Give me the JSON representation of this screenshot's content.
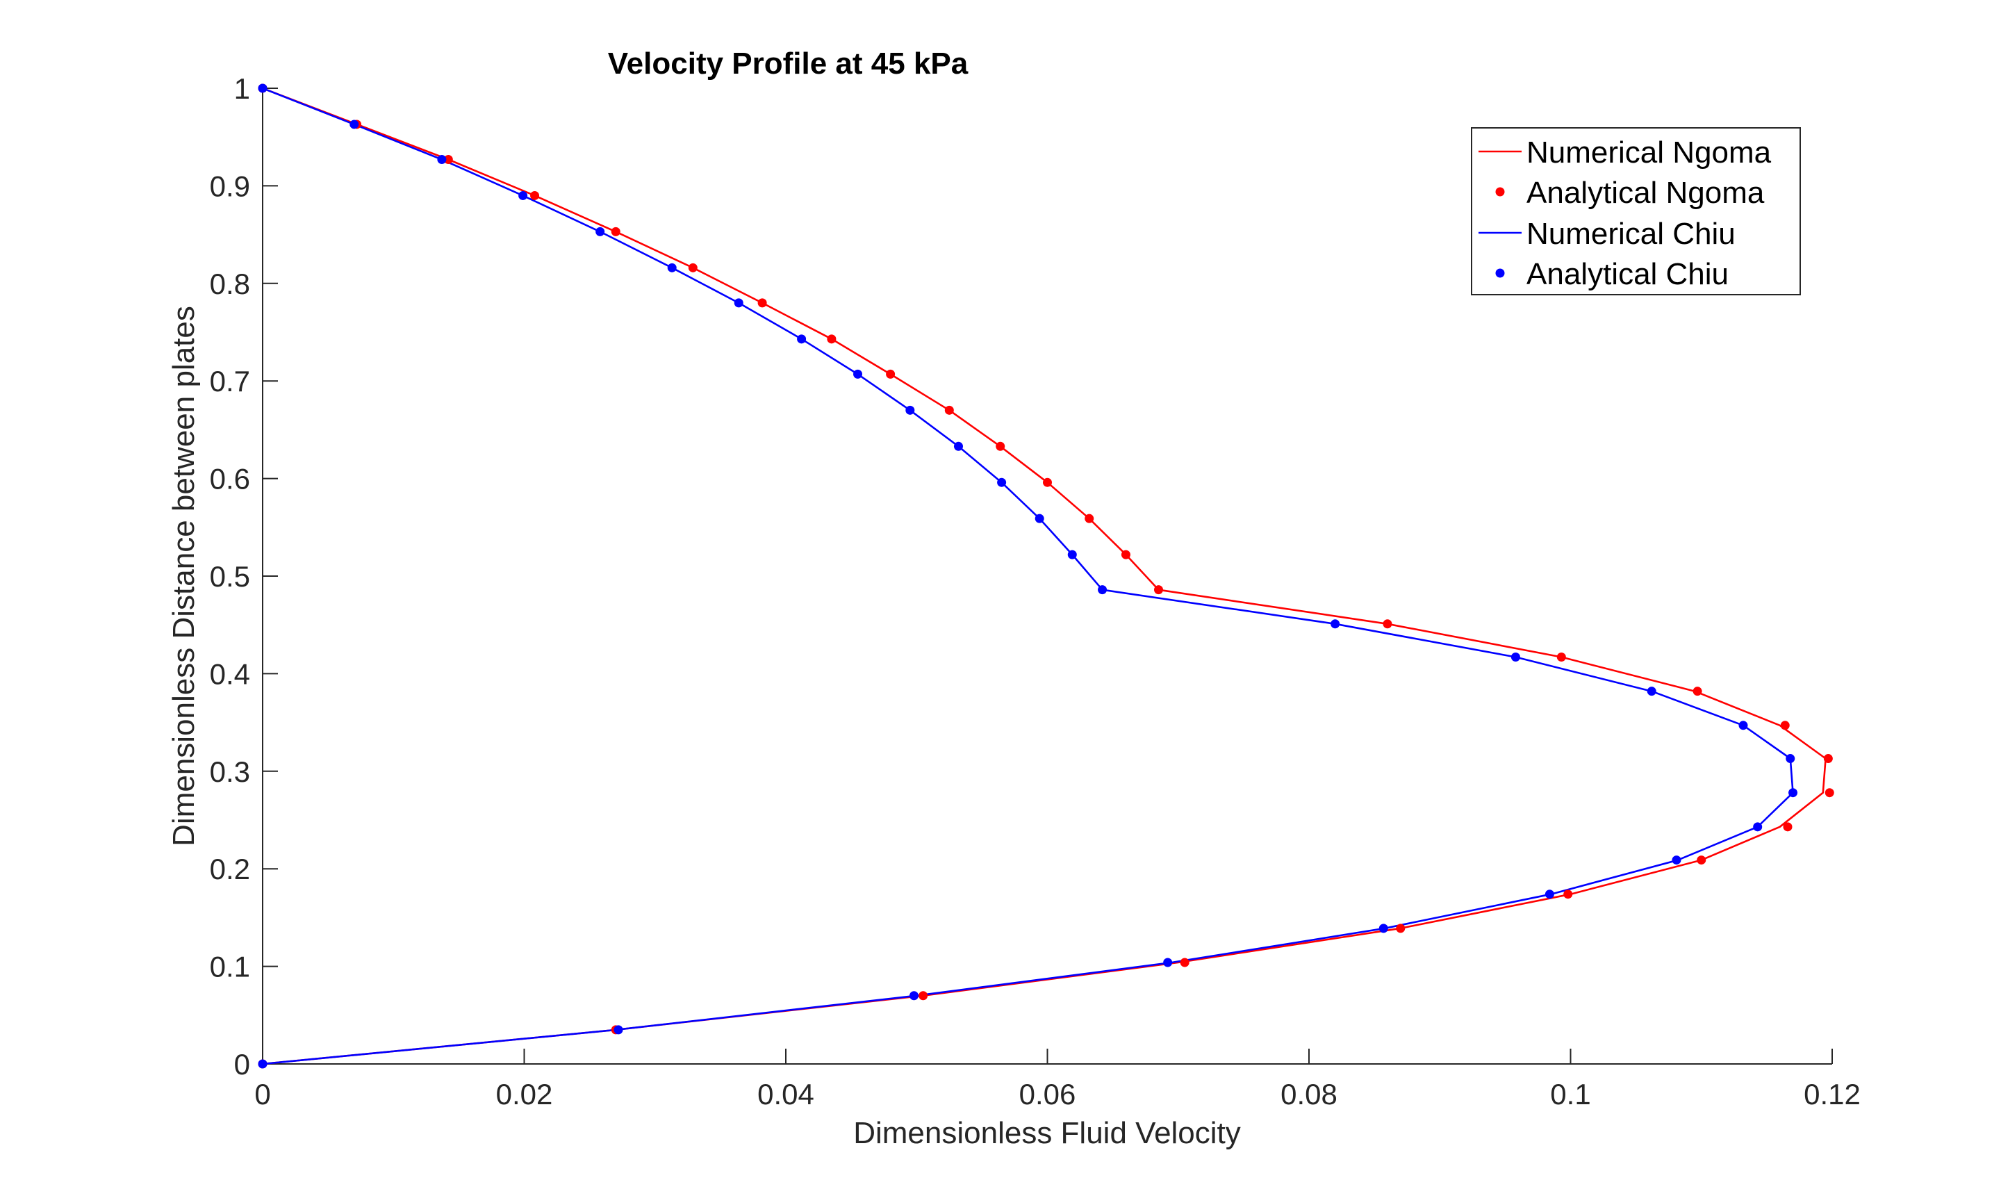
{
  "chart_data": {
    "type": "line",
    "title": "Velocity Profile at 45 kPa",
    "xlabel": "Dimensionless Fluid Velocity",
    "ylabel": "Dimensionless Distance between plates",
    "xlim": [
      0,
      0.12
    ],
    "ylim": [
      0,
      1
    ],
    "xticks": [
      0,
      0.02,
      0.04,
      0.06,
      0.08,
      0.1,
      0.12
    ],
    "xtick_labels": [
      "0",
      "0.02",
      "0.04",
      "0.06",
      "0.08",
      "0.1",
      "0.12"
    ],
    "yticks": [
      0,
      0.1,
      0.2,
      0.3,
      0.4,
      0.5,
      0.6,
      0.7,
      0.8,
      0.9,
      1
    ],
    "ytick_labels": [
      "0",
      "0.1",
      "0.2",
      "0.3",
      "0.4",
      "0.5",
      "0.6",
      "0.7",
      "0.8",
      "0.9",
      "1"
    ],
    "grid": false,
    "legend_position": "top-right",
    "series": [
      {
        "name": "Numerical Ngoma",
        "style": "line",
        "color": "#ff0000",
        "points": [
          [
            0,
            0
          ],
          [
            0.027,
            0.035
          ],
          [
            0.0505,
            0.07
          ],
          [
            0.07,
            0.104
          ],
          [
            0.087,
            0.139
          ],
          [
            0.1,
            0.174
          ],
          [
            0.11,
            0.209
          ],
          [
            0.116,
            0.243
          ],
          [
            0.1193,
            0.278
          ],
          [
            0.1195,
            0.313
          ],
          [
            0.116,
            0.347
          ],
          [
            0.1095,
            0.382
          ],
          [
            0.0993,
            0.417
          ],
          [
            0.086,
            0.451
          ],
          [
            0.0685,
            0.486
          ],
          [
            0.066,
            0.522
          ],
          [
            0.0632,
            0.559
          ],
          [
            0.06,
            0.596
          ],
          [
            0.0564,
            0.633
          ],
          [
            0.0525,
            0.67
          ],
          [
            0.048,
            0.707
          ],
          [
            0.0435,
            0.743
          ],
          [
            0.0382,
            0.78
          ],
          [
            0.0329,
            0.816
          ],
          [
            0.027,
            0.853
          ],
          [
            0.0208,
            0.89
          ],
          [
            0.0142,
            0.927
          ],
          [
            0.0072,
            0.963
          ],
          [
            0,
            1
          ]
        ]
      },
      {
        "name": "Analytical Ngoma",
        "style": "markers",
        "color": "#ff0000",
        "points": [
          [
            0,
            0
          ],
          [
            0.027,
            0.035
          ],
          [
            0.0505,
            0.07
          ],
          [
            0.0705,
            0.104
          ],
          [
            0.087,
            0.139
          ],
          [
            0.0998,
            0.174
          ],
          [
            0.11,
            0.209
          ],
          [
            0.1166,
            0.243
          ],
          [
            0.1198,
            0.278
          ],
          [
            0.1197,
            0.313
          ],
          [
            0.1164,
            0.347
          ],
          [
            0.1097,
            0.382
          ],
          [
            0.0993,
            0.417
          ],
          [
            0.086,
            0.451
          ],
          [
            0.0685,
            0.486
          ],
          [
            0.066,
            0.522
          ],
          [
            0.0632,
            0.559
          ],
          [
            0.06,
            0.596
          ],
          [
            0.0564,
            0.633
          ],
          [
            0.0525,
            0.67
          ],
          [
            0.048,
            0.707
          ],
          [
            0.0435,
            0.743
          ],
          [
            0.0382,
            0.78
          ],
          [
            0.0329,
            0.816
          ],
          [
            0.027,
            0.853
          ],
          [
            0.0208,
            0.89
          ],
          [
            0.0142,
            0.927
          ],
          [
            0.0072,
            0.963
          ],
          [
            0,
            1
          ]
        ]
      },
      {
        "name": "Numerical Chiu",
        "style": "line",
        "color": "#0000ff",
        "points": [
          [
            0,
            0
          ],
          [
            0.027,
            0.035
          ],
          [
            0.05,
            0.07
          ],
          [
            0.0695,
            0.104
          ],
          [
            0.0858,
            0.139
          ],
          [
            0.0985,
            0.174
          ],
          [
            0.1082,
            0.209
          ],
          [
            0.1143,
            0.243
          ],
          [
            0.117,
            0.278
          ],
          [
            0.1168,
            0.313
          ],
          [
            0.1132,
            0.347
          ],
          [
            0.1062,
            0.382
          ],
          [
            0.0958,
            0.417
          ],
          [
            0.082,
            0.451
          ],
          [
            0.0642,
            0.486
          ],
          [
            0.0619,
            0.522
          ],
          [
            0.0594,
            0.559
          ],
          [
            0.0565,
            0.596
          ],
          [
            0.0532,
            0.633
          ],
          [
            0.0495,
            0.67
          ],
          [
            0.0455,
            0.707
          ],
          [
            0.0412,
            0.743
          ],
          [
            0.0364,
            0.78
          ],
          [
            0.0313,
            0.816
          ],
          [
            0.0258,
            0.853
          ],
          [
            0.0199,
            0.89
          ],
          [
            0.0137,
            0.927
          ],
          [
            0.007,
            0.963
          ],
          [
            0,
            1
          ]
        ]
      },
      {
        "name": "Analytical Chiu",
        "style": "markers",
        "color": "#0000ff",
        "points": [
          [
            0,
            0
          ],
          [
            0.0272,
            0.035
          ],
          [
            0.0498,
            0.07
          ],
          [
            0.0692,
            0.104
          ],
          [
            0.0857,
            0.139
          ],
          [
            0.0984,
            0.174
          ],
          [
            0.1081,
            0.209
          ],
          [
            0.1143,
            0.243
          ],
          [
            0.117,
            0.278
          ],
          [
            0.1168,
            0.313
          ],
          [
            0.1132,
            0.347
          ],
          [
            0.1062,
            0.382
          ],
          [
            0.0958,
            0.417
          ],
          [
            0.082,
            0.451
          ],
          [
            0.0642,
            0.486
          ],
          [
            0.0619,
            0.522
          ],
          [
            0.0594,
            0.559
          ],
          [
            0.0565,
            0.596
          ],
          [
            0.0532,
            0.633
          ],
          [
            0.0495,
            0.67
          ],
          [
            0.0455,
            0.707
          ],
          [
            0.0412,
            0.743
          ],
          [
            0.0364,
            0.78
          ],
          [
            0.0313,
            0.816
          ],
          [
            0.0258,
            0.853
          ],
          [
            0.0199,
            0.89
          ],
          [
            0.0137,
            0.927
          ],
          [
            0.007,
            0.963
          ],
          [
            0,
            1
          ]
        ]
      }
    ]
  }
}
